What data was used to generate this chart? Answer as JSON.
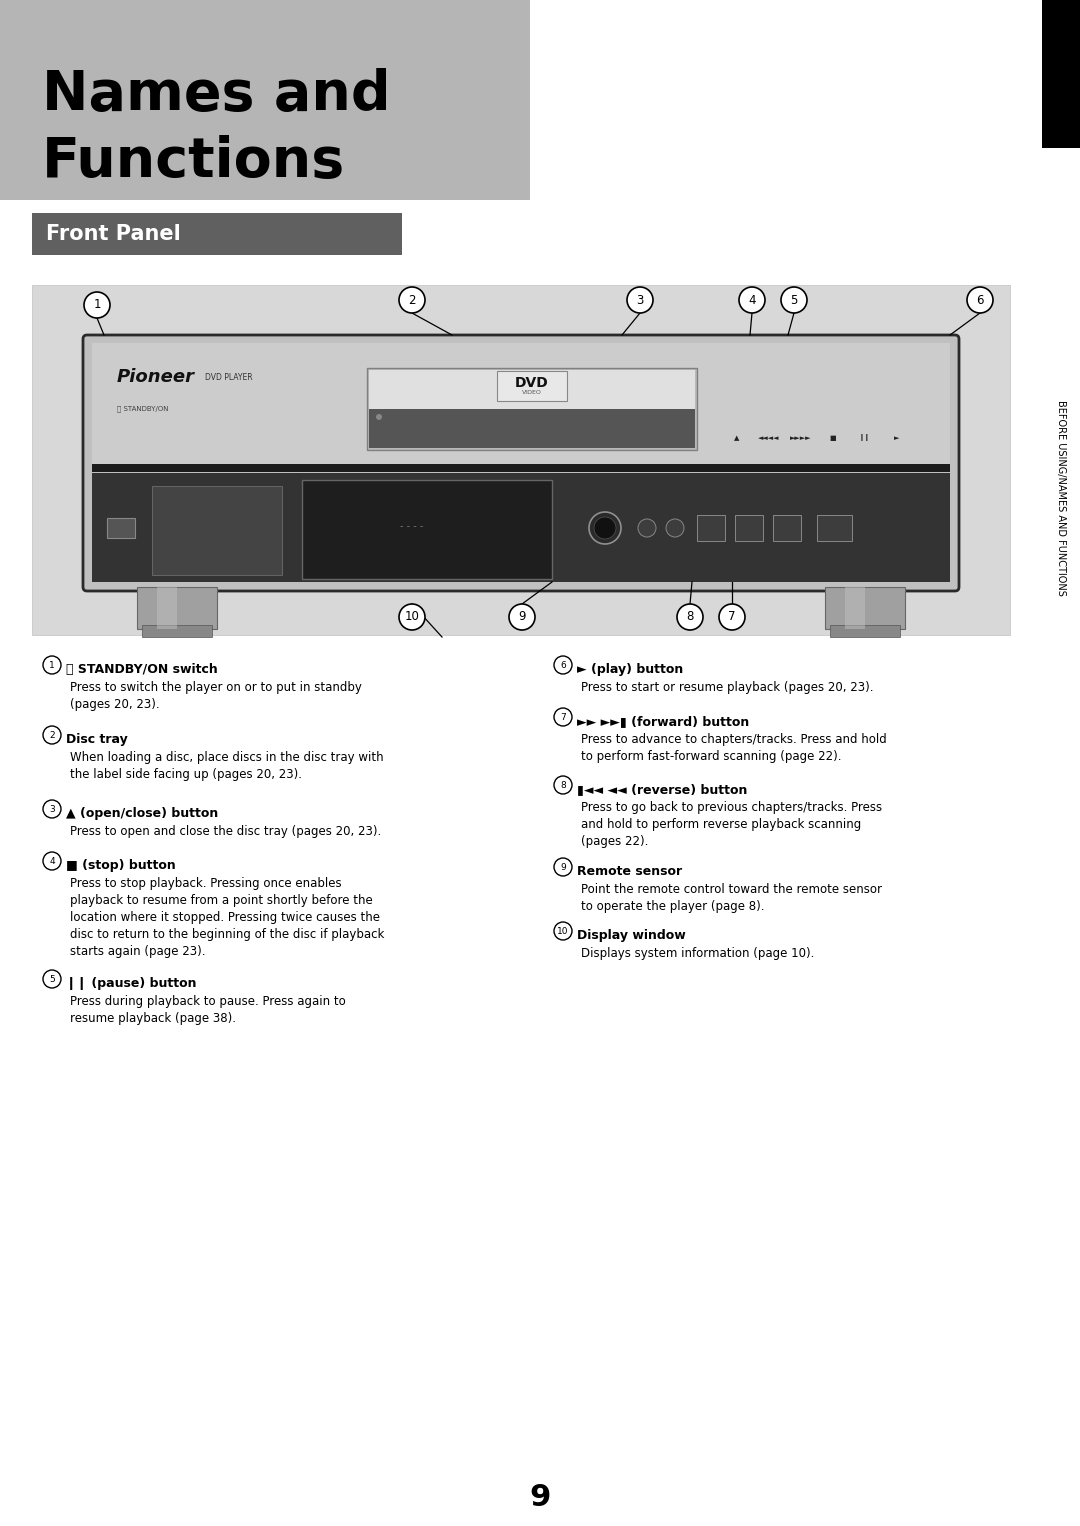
{
  "title_line1": "Names and",
  "title_line2": "Functions",
  "title_bg_color": "#b5b5b5",
  "section_title": "Front Panel",
  "section_title_bg": "#606060",
  "section_title_color": "#ffffff",
  "page_bg": "#ffffff",
  "sidebar_text": "BEFORE USING/NAMES AND FUNCTIONS",
  "sidebar_bg": "#000000",
  "page_number": "9",
  "items_left": [
    {
      "num": "1",
      "title": "ⓘ STANDBY/ON switch",
      "body": "Press to switch the player on or to put in standby\n(pages 20, 23)."
    },
    {
      "num": "2",
      "title": "Disc tray",
      "body": "When loading a disc, place discs in the disc tray with\nthe label side facing up (pages 20, 23)."
    },
    {
      "num": "3",
      "title": "▲ (open/close) button",
      "body": "Press to open and close the disc tray (pages 20, 23)."
    },
    {
      "num": "4",
      "title": "■ (stop) button",
      "body": "Press to stop playback. Pressing once enables\nplayback to resume from a point shortly before the\nlocation where it stopped. Pressing twice causes the\ndisc to return to the beginning of the disc if playback\nstarts again (page 23)."
    },
    {
      "num": "5",
      "title": "❙❙ (pause) button",
      "body": "Press during playback to pause. Press again to\nresume playback (page 38)."
    }
  ],
  "items_right": [
    {
      "num": "6",
      "title": "► (play) button",
      "body": "Press to start or resume playback (pages 20, 23)."
    },
    {
      "num": "7",
      "title": "►► ►►▮ (forward) button",
      "body": "Press to advance to chapters/tracks. Press and hold\nto perform fast-forward scanning (page 22)."
    },
    {
      "num": "8",
      "title": "▮◄◄ ◄◄ (reverse) button",
      "body": "Press to go back to previous chapters/tracks. Press\nand hold to perform reverse playback scanning\n(pages 22)."
    },
    {
      "num": "9",
      "title": "Remote sensor",
      "body": "Point the remote control toward the remote sensor\nto operate the player (page 8)."
    },
    {
      "num": "10",
      "title": "Display window",
      "body": "Displays system information (page 10)."
    }
  ]
}
